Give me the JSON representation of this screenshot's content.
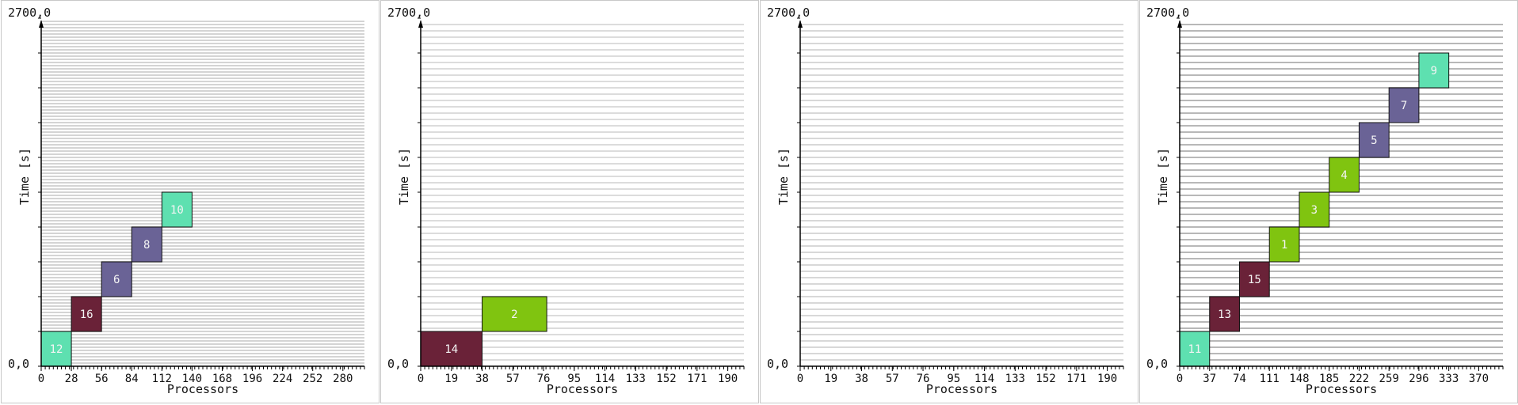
{
  "chart_data": [
    {
      "type": "gantt",
      "corner_top": "2700,0",
      "corner_origin": "0,0",
      "xlabel": "Processors",
      "ylabel": "Time [s]",
      "xlim": [
        0,
        300
      ],
      "ylim": [
        0,
        2700
      ],
      "x_ticks": [
        0,
        28,
        56,
        84,
        112,
        140,
        168,
        196,
        224,
        252,
        280
      ],
      "grid_color": "#d4d4d4",
      "grid_density": "fine",
      "jobs": [
        {
          "id": "12",
          "start": 0,
          "end": 270,
          "proc_start": 0,
          "proc_end": 28,
          "color": "#5ee0b0"
        },
        {
          "id": "16",
          "start": 270,
          "end": 540,
          "proc_start": 28,
          "proc_end": 56,
          "color": "#6a2238"
        },
        {
          "id": "6",
          "start": 540,
          "end": 810,
          "proc_start": 56,
          "proc_end": 84,
          "color": "#6a6396"
        },
        {
          "id": "8",
          "start": 810,
          "end": 1080,
          "proc_start": 84,
          "proc_end": 112,
          "color": "#6a6396"
        },
        {
          "id": "10",
          "start": 1080,
          "end": 1350,
          "proc_start": 112,
          "proc_end": 140,
          "color": "#5ee0b0"
        }
      ]
    },
    {
      "type": "gantt",
      "corner_top": "2700,0",
      "corner_origin": "0,0",
      "xlabel": "Processors",
      "ylabel": "Time [s]",
      "xlim": [
        0,
        200
      ],
      "ylim": [
        0,
        2700
      ],
      "x_ticks": [
        0,
        19,
        38,
        57,
        76,
        95,
        114,
        133,
        152,
        171,
        190
      ],
      "grid_color": "#dcdcdc",
      "grid_density": "medium",
      "jobs": [
        {
          "id": "14",
          "start": 0,
          "end": 270,
          "proc_start": 0,
          "proc_end": 38,
          "color": "#6a2238"
        },
        {
          "id": "2",
          "start": 270,
          "end": 540,
          "proc_start": 38,
          "proc_end": 78,
          "color": "#80c410"
        }
      ]
    },
    {
      "type": "gantt",
      "corner_top": "2700,0",
      "corner_origin": "0,0",
      "xlabel": "Processors",
      "ylabel": "Time [s]",
      "xlim": [
        0,
        200
      ],
      "ylim": [
        0,
        2700
      ],
      "x_ticks": [
        0,
        19,
        38,
        57,
        76,
        95,
        114,
        133,
        152,
        171,
        190
      ],
      "grid_color": "#d8d8d8",
      "grid_density": "medium",
      "jobs": []
    },
    {
      "type": "gantt",
      "corner_top": "2700,0",
      "corner_origin": "0,0",
      "xlabel": "Processors",
      "ylabel": "Time [s]",
      "xlim": [
        0,
        400
      ],
      "ylim": [
        0,
        2700
      ],
      "x_ticks": [
        0,
        37,
        74,
        111,
        148,
        185,
        222,
        259,
        296,
        333,
        370
      ],
      "grid_color": "#b8b8b8",
      "grid_density": "medium",
      "jobs": [
        {
          "id": "11",
          "start": 0,
          "end": 270,
          "proc_start": 0,
          "proc_end": 37,
          "color": "#5ee0b0"
        },
        {
          "id": "13",
          "start": 270,
          "end": 540,
          "proc_start": 37,
          "proc_end": 74,
          "color": "#6a2238"
        },
        {
          "id": "15",
          "start": 540,
          "end": 810,
          "proc_start": 74,
          "proc_end": 111,
          "color": "#6a2238"
        },
        {
          "id": "1",
          "start": 810,
          "end": 1080,
          "proc_start": 111,
          "proc_end": 148,
          "color": "#80c410"
        },
        {
          "id": "3",
          "start": 1080,
          "end": 1350,
          "proc_start": 148,
          "proc_end": 185,
          "color": "#80c410"
        },
        {
          "id": "4",
          "start": 1350,
          "end": 1620,
          "proc_start": 185,
          "proc_end": 222,
          "color": "#80c410"
        },
        {
          "id": "5",
          "start": 1620,
          "end": 1890,
          "proc_start": 222,
          "proc_end": 259,
          "color": "#6a6396"
        },
        {
          "id": "7",
          "start": 1890,
          "end": 2160,
          "proc_start": 259,
          "proc_end": 296,
          "color": "#6a6396"
        },
        {
          "id": "9",
          "start": 2160,
          "end": 2430,
          "proc_start": 296,
          "proc_end": 333,
          "color": "#5ee0b0"
        }
      ]
    }
  ]
}
